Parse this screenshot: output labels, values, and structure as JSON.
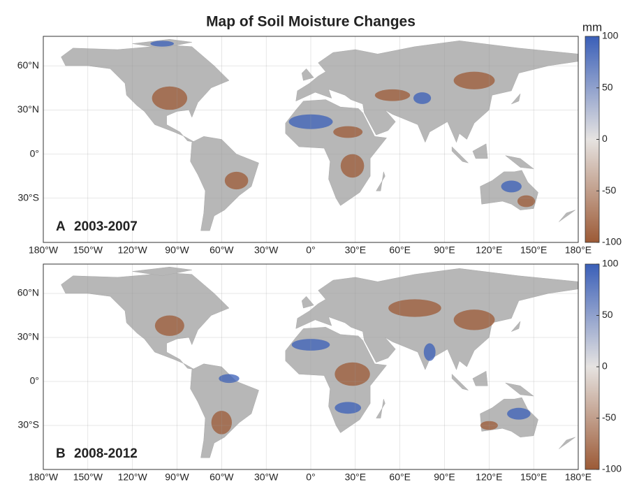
{
  "title": "Map of Soil Moisture Changes",
  "panels": [
    {
      "letter": "A",
      "period": "2003-2007"
    },
    {
      "letter": "B",
      "period": "2008-2012"
    }
  ],
  "xlim": [
    -180,
    180
  ],
  "ylim": [
    -60,
    80
  ],
  "xticks": [
    {
      "value": -180,
      "label": "180°W"
    },
    {
      "value": -150,
      "label": "150°W"
    },
    {
      "value": -120,
      "label": "120°W"
    },
    {
      "value": -90,
      "label": "90°W"
    },
    {
      "value": -60,
      "label": "60°W"
    },
    {
      "value": -30,
      "label": "30°W"
    },
    {
      "value": 0,
      "label": "0°"
    },
    {
      "value": 30,
      "label": "30°E"
    },
    {
      "value": 60,
      "label": "60°E"
    },
    {
      "value": 90,
      "label": "90°E"
    },
    {
      "value": 120,
      "label": "120°E"
    },
    {
      "value": 150,
      "label": "150°E"
    },
    {
      "value": 180,
      "label": "180°E"
    }
  ],
  "yticks": [
    {
      "value": 60,
      "label": "60°N"
    },
    {
      "value": 30,
      "label": "30°N"
    },
    {
      "value": 0,
      "label": "0°"
    },
    {
      "value": -30,
      "label": "30°S"
    }
  ],
  "colorbar": {
    "unit": "mm",
    "lim": [
      -100,
      100
    ],
    "ticks": [
      100,
      50,
      0,
      -50,
      -100
    ],
    "colors": [
      "#9c5a36",
      "#e6e3e1",
      "#3a5fb8"
    ]
  }
}
